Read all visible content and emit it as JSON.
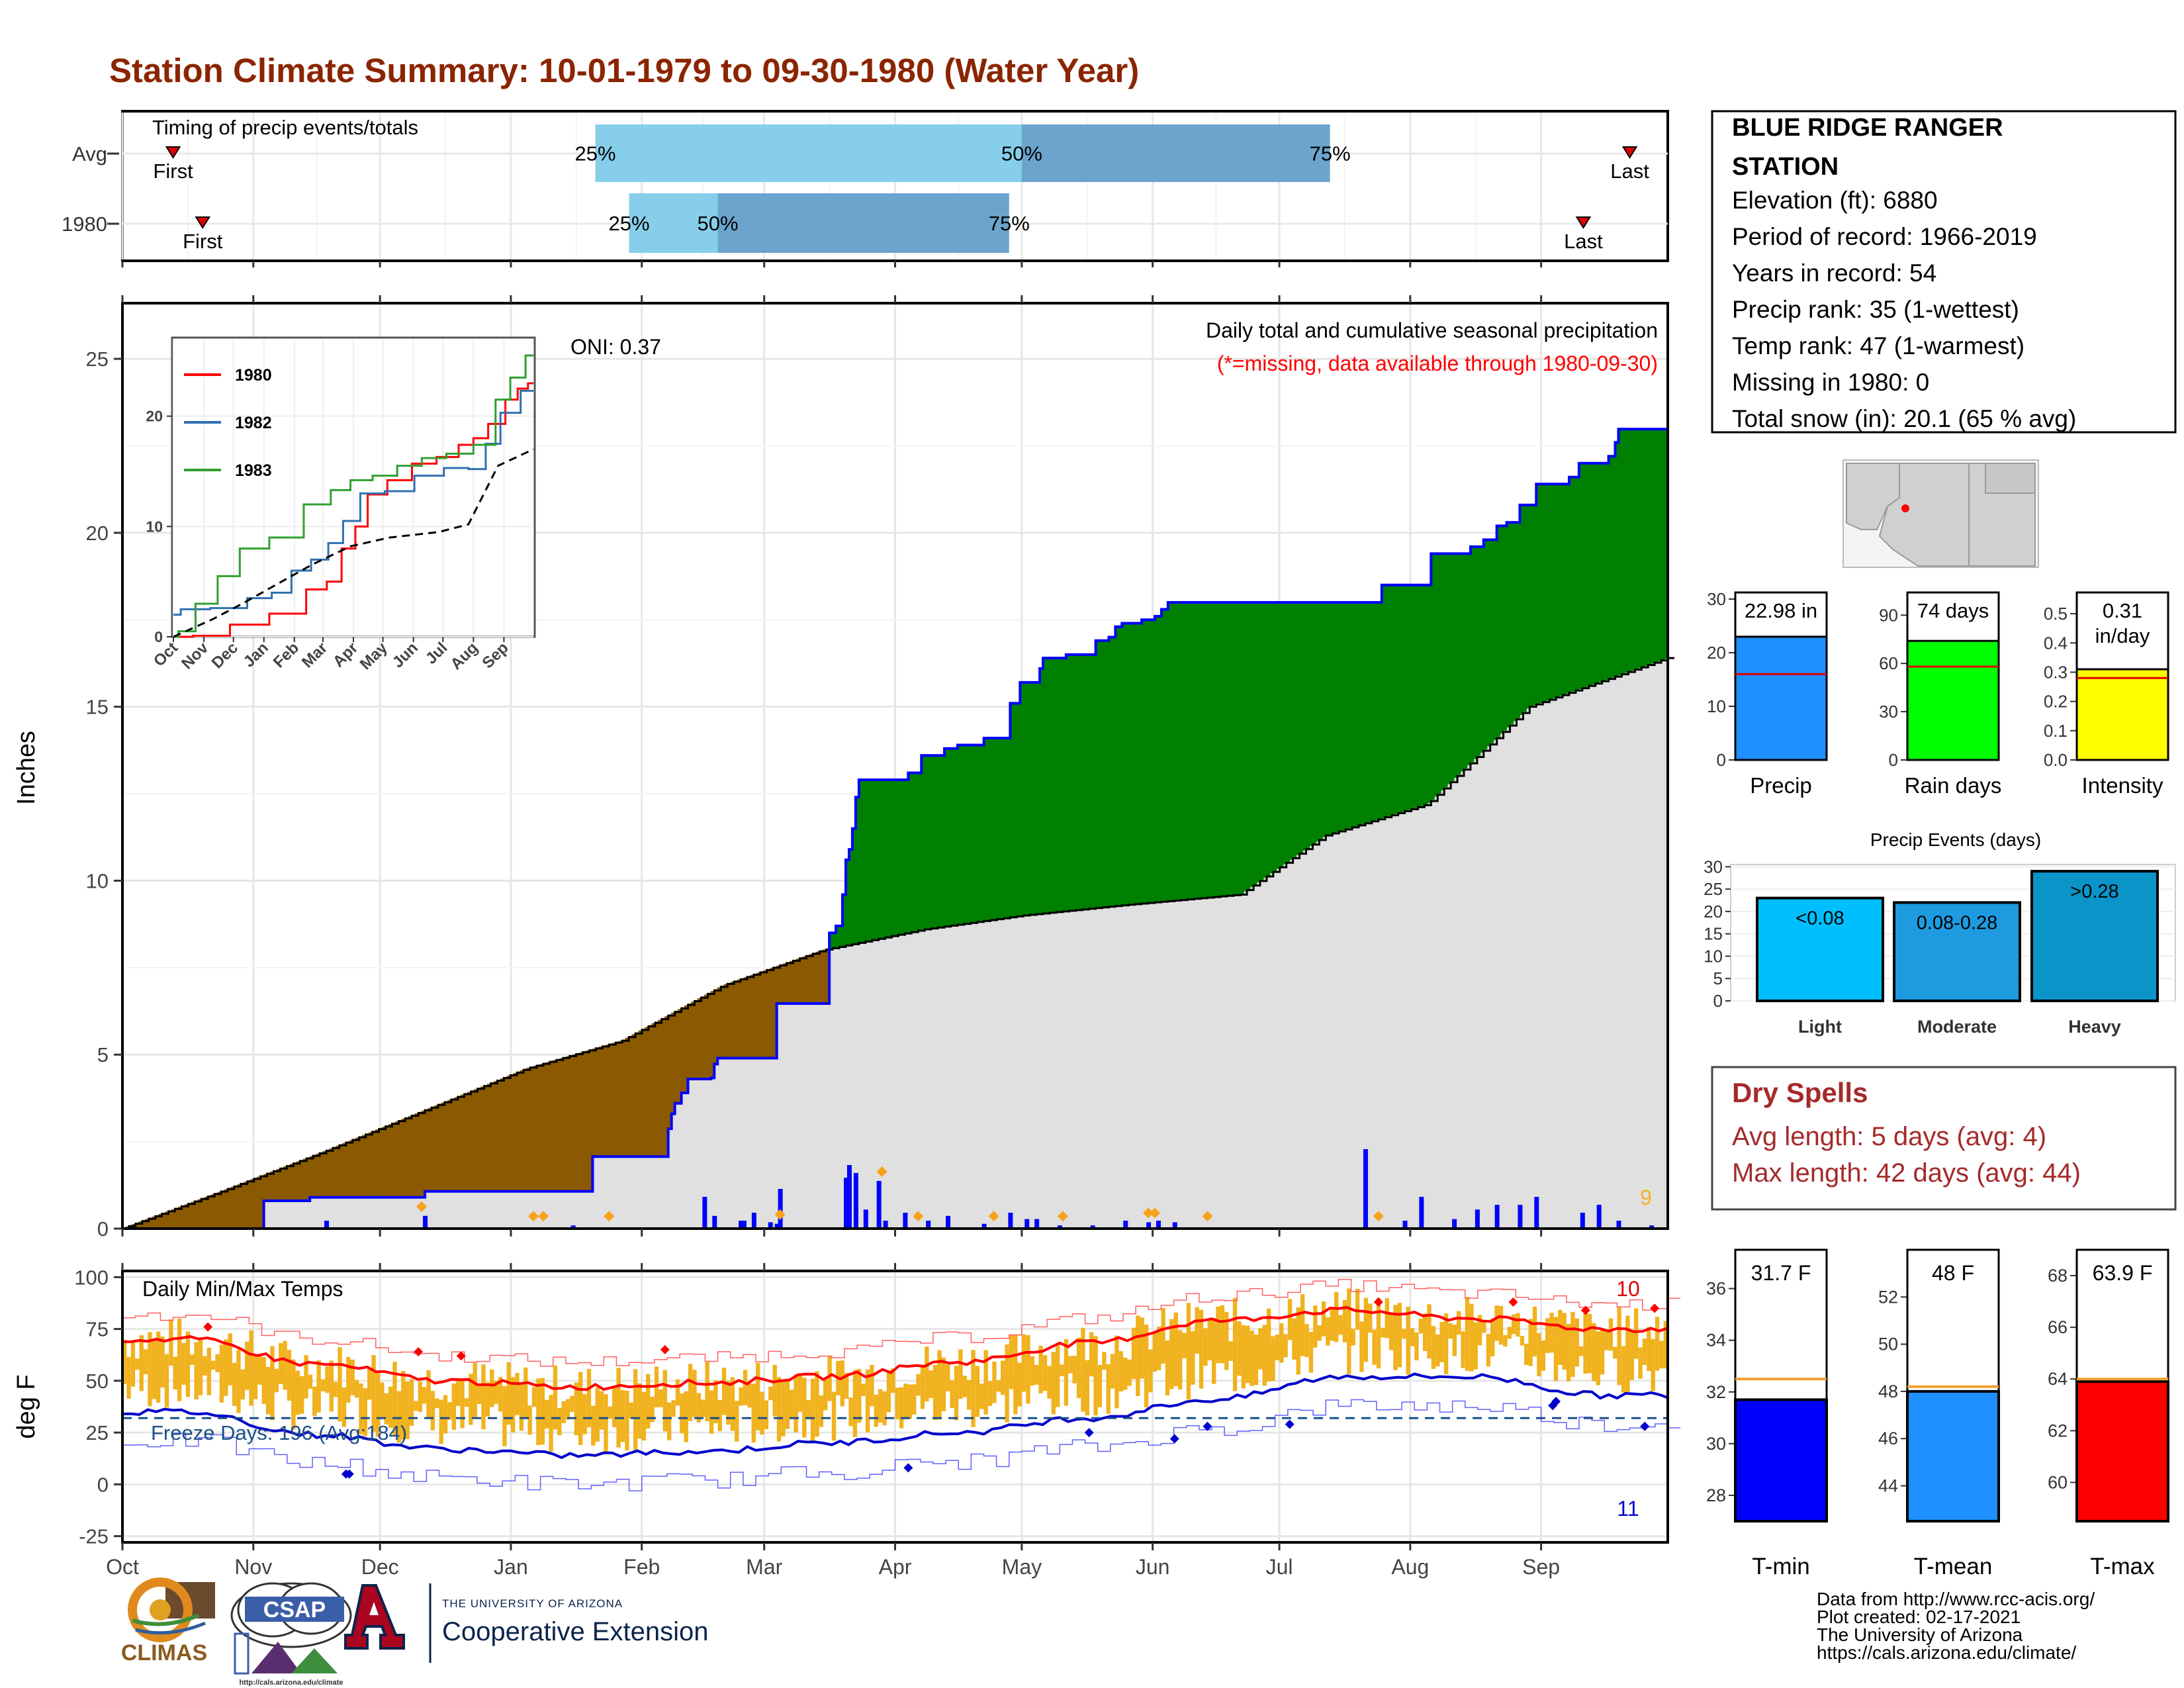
{
  "title": "Station Climate Summary: 10-01-1979 to 09-30-1980 (Water Year)",
  "colors": {
    "title": "#8B2500",
    "brown": "#8B5A00",
    "green": "#008000",
    "gray": "#E0E0E0",
    "blue": "#0000FF",
    "orange": "#F0B21E",
    "red": "#FF0000",
    "lightblue": "#87CEEB",
    "midblue": "#6BA4CC",
    "dryspell": "#A52A2A"
  },
  "months": [
    "Oct",
    "Nov",
    "Dec",
    "Jan",
    "Feb",
    "Mar",
    "Apr",
    "May",
    "Jun",
    "Jul",
    "Aug",
    "Sep"
  ],
  "timing": {
    "heading": "Timing of precip events/totals",
    "rows": [
      {
        "label": "Avg",
        "first": "First",
        "last": "Last",
        "first_day": 12,
        "last_day": 357,
        "p25_label": "25%",
        "p50_label": "50%",
        "p75_label": "75%",
        "p25_day": 112,
        "p50_day": 213,
        "p75_day": 286
      },
      {
        "label": "1980",
        "first": "First",
        "last": "Last",
        "first_day": 19,
        "last_day": 346,
        "p25_label": "25%",
        "p50_label": "50%",
        "p75_label": "75%",
        "p25_day": 120,
        "p50_day": 141,
        "p75_day": 210
      }
    ]
  },
  "precip_panel": {
    "title": "Daily total and cumulative seasonal precipitation",
    "missing_note": "(*=missing, data available through 1980-09-30)",
    "oni": "ONI: 0.37",
    "ylabel": "Inches",
    "yticks": [
      "0",
      "5",
      "10",
      "15",
      "20",
      "25"
    ],
    "corner_count": "9"
  },
  "inset": {
    "legend": [
      {
        "name": "1980",
        "color": "#FF0000"
      },
      {
        "name": "1982",
        "color": "#3070B0"
      },
      {
        "name": "1983",
        "color": "#30A030"
      }
    ],
    "yticks": [
      "0",
      "10",
      "20"
    ],
    "xticks": [
      "Oct",
      "Nov",
      "Dec",
      "Jan",
      "Feb",
      "Mar",
      "Apr",
      "May",
      "Jun",
      "Jul",
      "Aug",
      "Sep"
    ]
  },
  "temp_panel": {
    "title": "Daily Min/Max Temps",
    "freeze": "Freeze Days: 196 (Avg:184)",
    "ylabel": "deg F",
    "yticks": [
      "-25",
      "0",
      "25",
      "50",
      "75",
      "100"
    ],
    "count_max": "10",
    "count_min": "11"
  },
  "station": {
    "name_line1": "BLUE RIDGE RANGER",
    "name_line2": "STATION",
    "lines": [
      "Elevation (ft): 6880",
      "Period of record: 1966-2019",
      "Years in record: 54",
      "Precip rank: 35 (1-wettest)",
      "Temp rank: 47 (1-warmest)",
      "Missing in 1980: 0",
      "Total snow (in): 20.1 (65 % avg)"
    ]
  },
  "minibars": [
    {
      "label": "Precip",
      "value": 22.98,
      "value_text": "22.98 in",
      "avg": 16,
      "ymax": 30,
      "yticks": [
        "0",
        "10",
        "20",
        "30"
      ],
      "color": "#1E90FF"
    },
    {
      "label": "Rain days",
      "value": 74,
      "value_text": "74 days",
      "avg": 58,
      "ymax": 100,
      "yticks": [
        "0",
        "30",
        "60",
        "90"
      ],
      "color": "#00FF00"
    },
    {
      "label": "Intensity",
      "value": 0.31,
      "value_text": "0.31\nin/day",
      "avg": 0.28,
      "ymax": 0.55,
      "yticks": [
        "0.0",
        "0.1",
        "0.2",
        "0.3",
        "0.4",
        "0.5"
      ],
      "color": "#FFFF00"
    }
  ],
  "events": {
    "title": "Precip Events (days)",
    "yticks": [
      "0",
      "5",
      "10",
      "15",
      "20",
      "25",
      "30"
    ],
    "bars": [
      {
        "label": "Light",
        "text": "<0.08",
        "value": 23,
        "color": "#00BFFF"
      },
      {
        "label": "Moderate",
        "text": "0.08-0.28",
        "value": 22,
        "color": "#1E9BE0"
      },
      {
        "label": "Heavy",
        "text": ">0.28",
        "value": 29,
        "color": "#0A94C8"
      }
    ]
  },
  "dry_spells": {
    "title": "Dry Spells",
    "avg": "Avg length: 5 days (avg: 4)",
    "max": "Max length: 42 days (avg: 44)"
  },
  "temp_bars": [
    {
      "label": "T-min",
      "text": "31.7 F",
      "value": 31.7,
      "avg": 32.5,
      "ymin": 27,
      "ymax": 37.5,
      "yticks": [
        "28",
        "30",
        "32",
        "34",
        "36"
      ],
      "color": "#0000FF"
    },
    {
      "label": "T-mean",
      "text": "48 F",
      "value": 48,
      "avg": 48.2,
      "ymin": 42.5,
      "ymax": 54,
      "yticks": [
        "44",
        "46",
        "48",
        "50",
        "52"
      ],
      "color": "#1E90FF"
    },
    {
      "label": "T-max",
      "text": "63.9 F",
      "value": 63.9,
      "avg": 64,
      "ymin": 58.5,
      "ymax": 69,
      "yticks": [
        "60",
        "62",
        "64",
        "66",
        "68"
      ],
      "color": "#FF0000"
    }
  ],
  "footer": {
    "lines": [
      "Data from http://www.rcc-acis.org/",
      "Plot created: 02-17-2021",
      "The University of Arizona",
      "https://cals.arizona.edu/climate/"
    ],
    "climas": "CLIMAS",
    "csap": "CSAP",
    "csap_url": "http://cals.arizona.edu/climate",
    "ua_small": "THE UNIVERSITY OF ARIZONA",
    "ua_big": "Cooperative Extension"
  },
  "chart_data": [
    {
      "type": "area",
      "title": "Daily total and cumulative seasonal precipitation",
      "ylabel": "Inches",
      "ylim": [
        0,
        25
      ],
      "xlabel": "",
      "cumulative_1980": [
        [
          0,
          0
        ],
        [
          42,
          0
        ],
        [
          43,
          0.8
        ],
        [
          56,
          0.8
        ],
        [
          57,
          0.9
        ],
        [
          91,
          0.9
        ],
        [
          92,
          1.07
        ],
        [
          142,
          1.07
        ],
        [
          143,
          2.07
        ],
        [
          165,
          2.07
        ],
        [
          166,
          2.87
        ],
        [
          167,
          3.3
        ],
        [
          168,
          3.6
        ],
        [
          170,
          3.9
        ],
        [
          172,
          4.3
        ],
        [
          179,
          4.33
        ],
        [
          180,
          4.73
        ],
        [
          181,
          4.9
        ],
        [
          198,
          4.9
        ],
        [
          199,
          6.47
        ],
        [
          214,
          6.47
        ],
        [
          215,
          8.5
        ],
        [
          217,
          8.7
        ],
        [
          219,
          9.6
        ],
        [
          220,
          10.6
        ],
        [
          221,
          10.9
        ],
        [
          222,
          11.5
        ],
        [
          223,
          12.4
        ],
        [
          224,
          12.9
        ],
        [
          238,
          12.9
        ],
        [
          239,
          13.1
        ],
        [
          243,
          13.6
        ],
        [
          250,
          13.8
        ],
        [
          254,
          13.9
        ],
        [
          262,
          14.1
        ],
        [
          270,
          15.1
        ],
        [
          273,
          15.7
        ],
        [
          279,
          16.1
        ],
        [
          280,
          16.4
        ],
        [
          287,
          16.5
        ],
        [
          296,
          16.9
        ],
        [
          300,
          17.0
        ],
        [
          302,
          17.3
        ],
        [
          304,
          17.4
        ],
        [
          310,
          17.5
        ],
        [
          314,
          17.6
        ],
        [
          316,
          17.8
        ],
        [
          318,
          18.0
        ],
        [
          382,
          18.0
        ],
        [
          383,
          18.5
        ],
        [
          397,
          18.5
        ],
        [
          398,
          19.4
        ],
        [
          410,
          19.6
        ],
        [
          414,
          19.8
        ],
        [
          418,
          20.2
        ],
        [
          421,
          20.3
        ],
        [
          425,
          20.8
        ],
        [
          430,
          21.4
        ],
        [
          440,
          21.6
        ],
        [
          443,
          22.0
        ],
        [
          448,
          22.0
        ],
        [
          452,
          22.2
        ],
        [
          454,
          22.6
        ],
        [
          455,
          22.98
        ],
        [
          470,
          22.98
        ]
      ],
      "average_cumulative": [
        [
          0,
          0
        ],
        [
          31,
          1.1
        ],
        [
          61,
          2.2
        ],
        [
          92,
          3.4
        ],
        [
          123,
          4.6
        ],
        [
          152,
          5.4
        ],
        [
          183,
          7.0
        ],
        [
          213,
          8.0
        ],
        [
          244,
          8.6
        ],
        [
          274,
          9.0
        ],
        [
          305,
          9.3
        ],
        [
          340,
          9.6
        ],
        [
          366,
          11.3
        ],
        [
          397,
          12.2
        ],
        [
          428,
          15.0
        ],
        [
          470,
          16.4
        ]
      ],
      "daily_precip": [
        [
          62,
          0.05
        ],
        [
          92,
          0.08
        ],
        [
          137,
          0.02
        ],
        [
          177,
          0.2
        ],
        [
          180,
          0.08
        ],
        [
          188,
          0.05
        ],
        [
          189,
          0.05
        ],
        [
          192,
          0.1
        ],
        [
          197,
          0.04
        ],
        [
          199,
          0.03
        ],
        [
          200,
          0.25
        ],
        [
          220,
          0.32
        ],
        [
          221,
          0.4
        ],
        [
          223,
          0.35
        ],
        [
          226,
          0.12
        ],
        [
          230,
          0.3
        ],
        [
          232,
          0.05
        ],
        [
          238,
          0.1
        ],
        [
          245,
          0.05
        ],
        [
          251,
          0.08
        ],
        [
          262,
          0.03
        ],
        [
          270,
          0.1
        ],
        [
          275,
          0.06
        ],
        [
          278,
          0.06
        ],
        [
          285,
          0.02
        ],
        [
          295,
          0.02
        ],
        [
          305,
          0.05
        ],
        [
          312,
          0.04
        ],
        [
          315,
          0.05
        ],
        [
          320,
          0.04
        ],
        [
          378,
          0.5
        ],
        [
          390,
          0.05
        ],
        [
          395,
          0.2
        ],
        [
          405,
          0.06
        ],
        [
          412,
          0.12
        ],
        [
          418,
          0.15
        ],
        [
          425,
          0.15
        ],
        [
          430,
          0.2
        ],
        [
          444,
          0.1
        ],
        [
          449,
          0.15
        ],
        [
          455,
          0.05
        ],
        [
          465,
          0.02
        ]
      ],
      "orange_markers_days": [
        91,
        125,
        128,
        148,
        200,
        231,
        242,
        265,
        286,
        312,
        314,
        330,
        382
      ],
      "oni": 0.37
    },
    {
      "type": "line",
      "title": "",
      "series": [
        {
          "name": "1980"
        },
        {
          "name": "1982"
        },
        {
          "name": "1983"
        }
      ],
      "ylim": [
        0,
        27
      ]
    },
    {
      "type": "bar",
      "title": "Daily Min/Max Temps",
      "ylabel": "deg F",
      "ylim": [
        -28,
        103
      ],
      "avg_max_by_month": {
        "Oct": 70,
        "Nov": 58,
        "Dec": 50,
        "Jan": 47,
        "Feb": 49,
        "Mar": 52,
        "Apr": 59,
        "May": 68,
        "Jun": 79,
        "Jul": 84,
        "Aug": 80,
        "Sep": 75
      },
      "avg_min_by_month": {
        "Oct": 35,
        "Nov": 24,
        "Dec": 17,
        "Jan": 14,
        "Feb": 16,
        "Mar": 20,
        "Apr": 25,
        "May": 32,
        "Jun": 41,
        "Jul": 52,
        "Aug": 52,
        "Sep": 43
      },
      "freeze_line": 32,
      "freeze_days": 196,
      "freeze_days_avg": 184
    },
    {
      "type": "bar",
      "title": "Precip Events (days)",
      "categories": [
        "Light",
        "Moderate",
        "Heavy"
      ],
      "values": [
        23,
        22,
        29
      ],
      "ylim": [
        0,
        30
      ]
    },
    {
      "type": "bar",
      "categories": [
        "Precip",
        "Rain days",
        "Intensity"
      ],
      "values": [
        22.98,
        74,
        0.31
      ],
      "avg_values": [
        16,
        58,
        0.28
      ]
    },
    {
      "type": "bar",
      "categories": [
        "T-min",
        "T-mean",
        "T-max"
      ],
      "values": [
        31.7,
        48,
        63.9
      ],
      "avg_values": [
        32.5,
        48.2,
        64
      ]
    }
  ]
}
